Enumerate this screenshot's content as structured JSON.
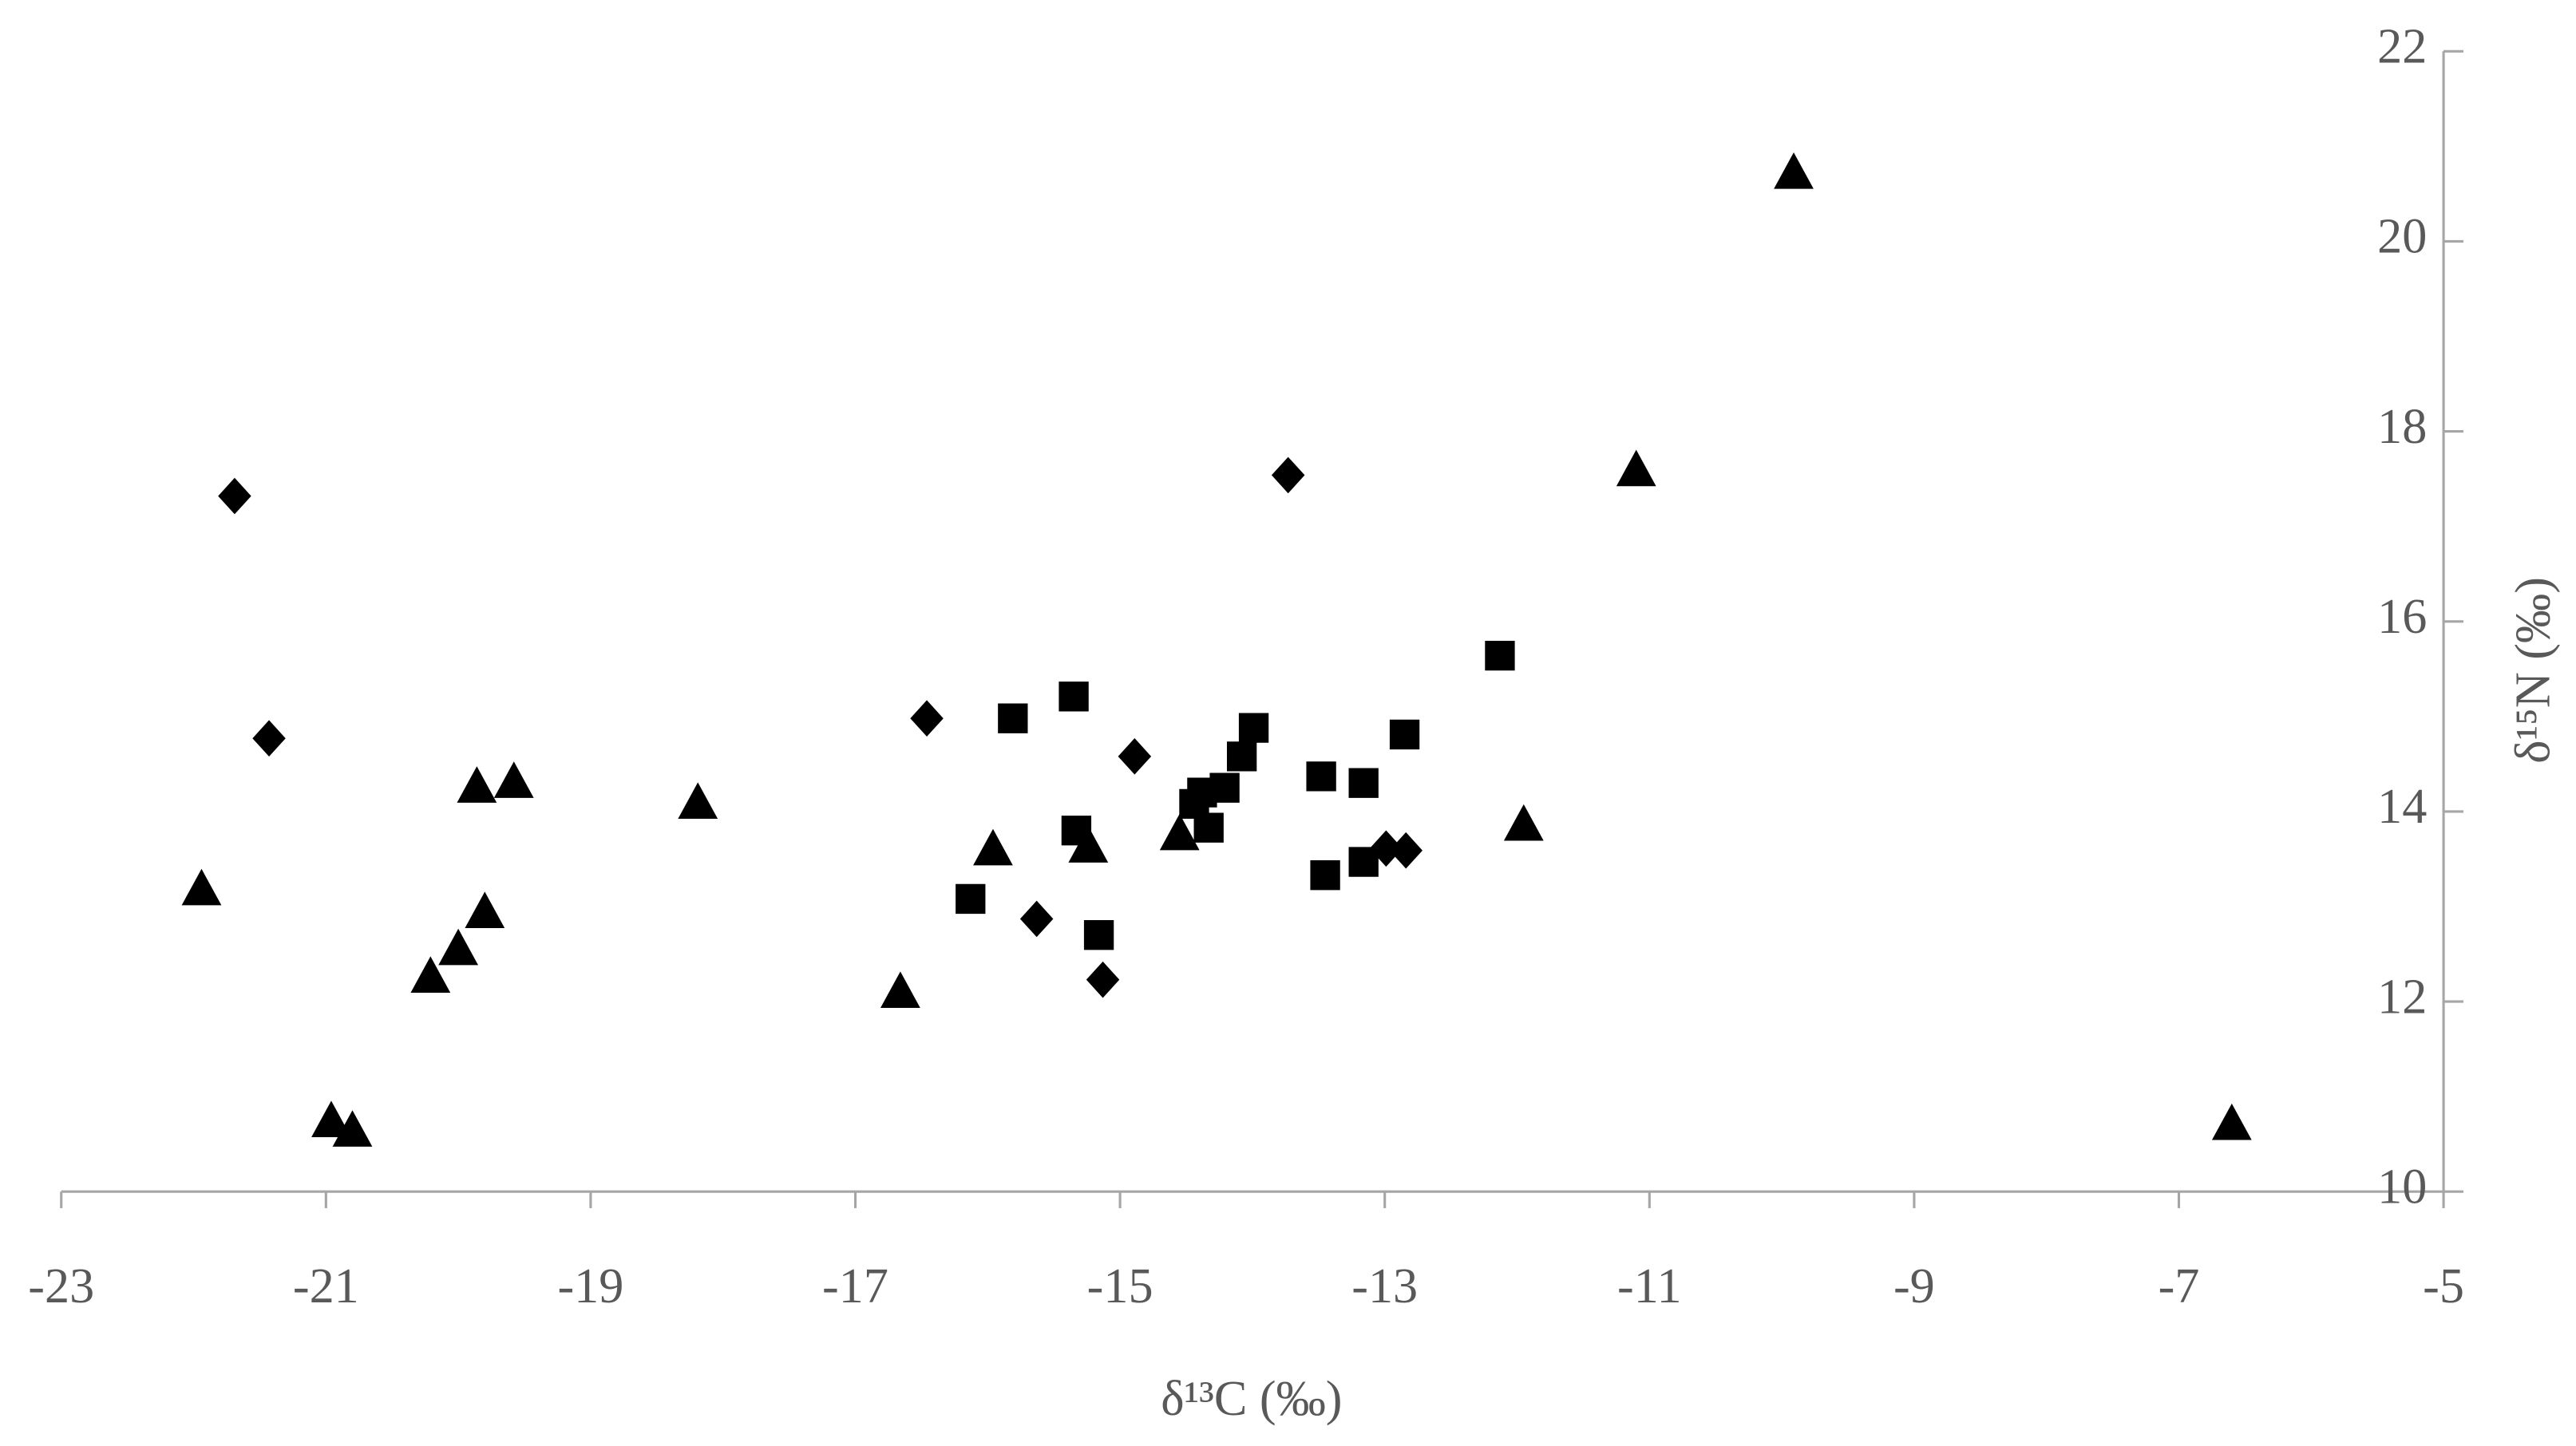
{
  "chart_data": {
    "type": "scatter",
    "xlabel": "δ¹³C (‰)",
    "ylabel": "δ¹⁵N (‰)",
    "xlim": [
      -23,
      -5
    ],
    "xticks": [
      -23,
      -21,
      -19,
      -17,
      -15,
      -13,
      -11,
      -9,
      -7,
      -5
    ],
    "ylim": [
      10,
      22
    ],
    "yticks": [
      10,
      12,
      14,
      16,
      18,
      20,
      22
    ],
    "y_axis_side": "right",
    "series": [
      {
        "marker": "diamond",
        "color": "#000000",
        "x": [
          -21.69,
          -21.43,
          -16.46,
          -14.89,
          -13.73,
          -15.63,
          -15.13,
          -12.99,
          -12.84
        ],
        "values": [
          17.32,
          14.77,
          14.98,
          14.58,
          17.54,
          12.87,
          12.23,
          13.61,
          13.59
        ]
      },
      {
        "marker": "square",
        "color": "#000000",
        "x": [
          -16.13,
          -15.81,
          -15.35,
          -15.33,
          -15.16,
          -14.44,
          -14.38,
          -14.33,
          -14.21,
          -14.08,
          -13.99,
          -13.48,
          -13.45,
          -13.16,
          -13.16,
          -12.85,
          -12.13
        ],
        "values": [
          13.08,
          14.98,
          15.21,
          13.8,
          12.7,
          14.08,
          14.2,
          13.83,
          14.25,
          14.58,
          14.88,
          14.37,
          13.33,
          14.3,
          13.47,
          14.81,
          15.64
        ]
      },
      {
        "marker": "triangle",
        "color": "#000000",
        "x": [
          -21.94,
          -20.96,
          -20.8,
          -20.21,
          -20.0,
          -19.86,
          -19.8,
          -19.58,
          -18.19,
          -16.66,
          -15.96,
          -15.24,
          -14.55,
          -11.95,
          -11.1,
          -9.91,
          -6.6
        ],
        "values": [
          13.17,
          10.73,
          10.63,
          12.25,
          12.54,
          14.25,
          12.93,
          14.3,
          14.08,
          12.09,
          13.59,
          13.62,
          13.75,
          13.85,
          17.58,
          20.71,
          10.7
        ]
      }
    ]
  }
}
